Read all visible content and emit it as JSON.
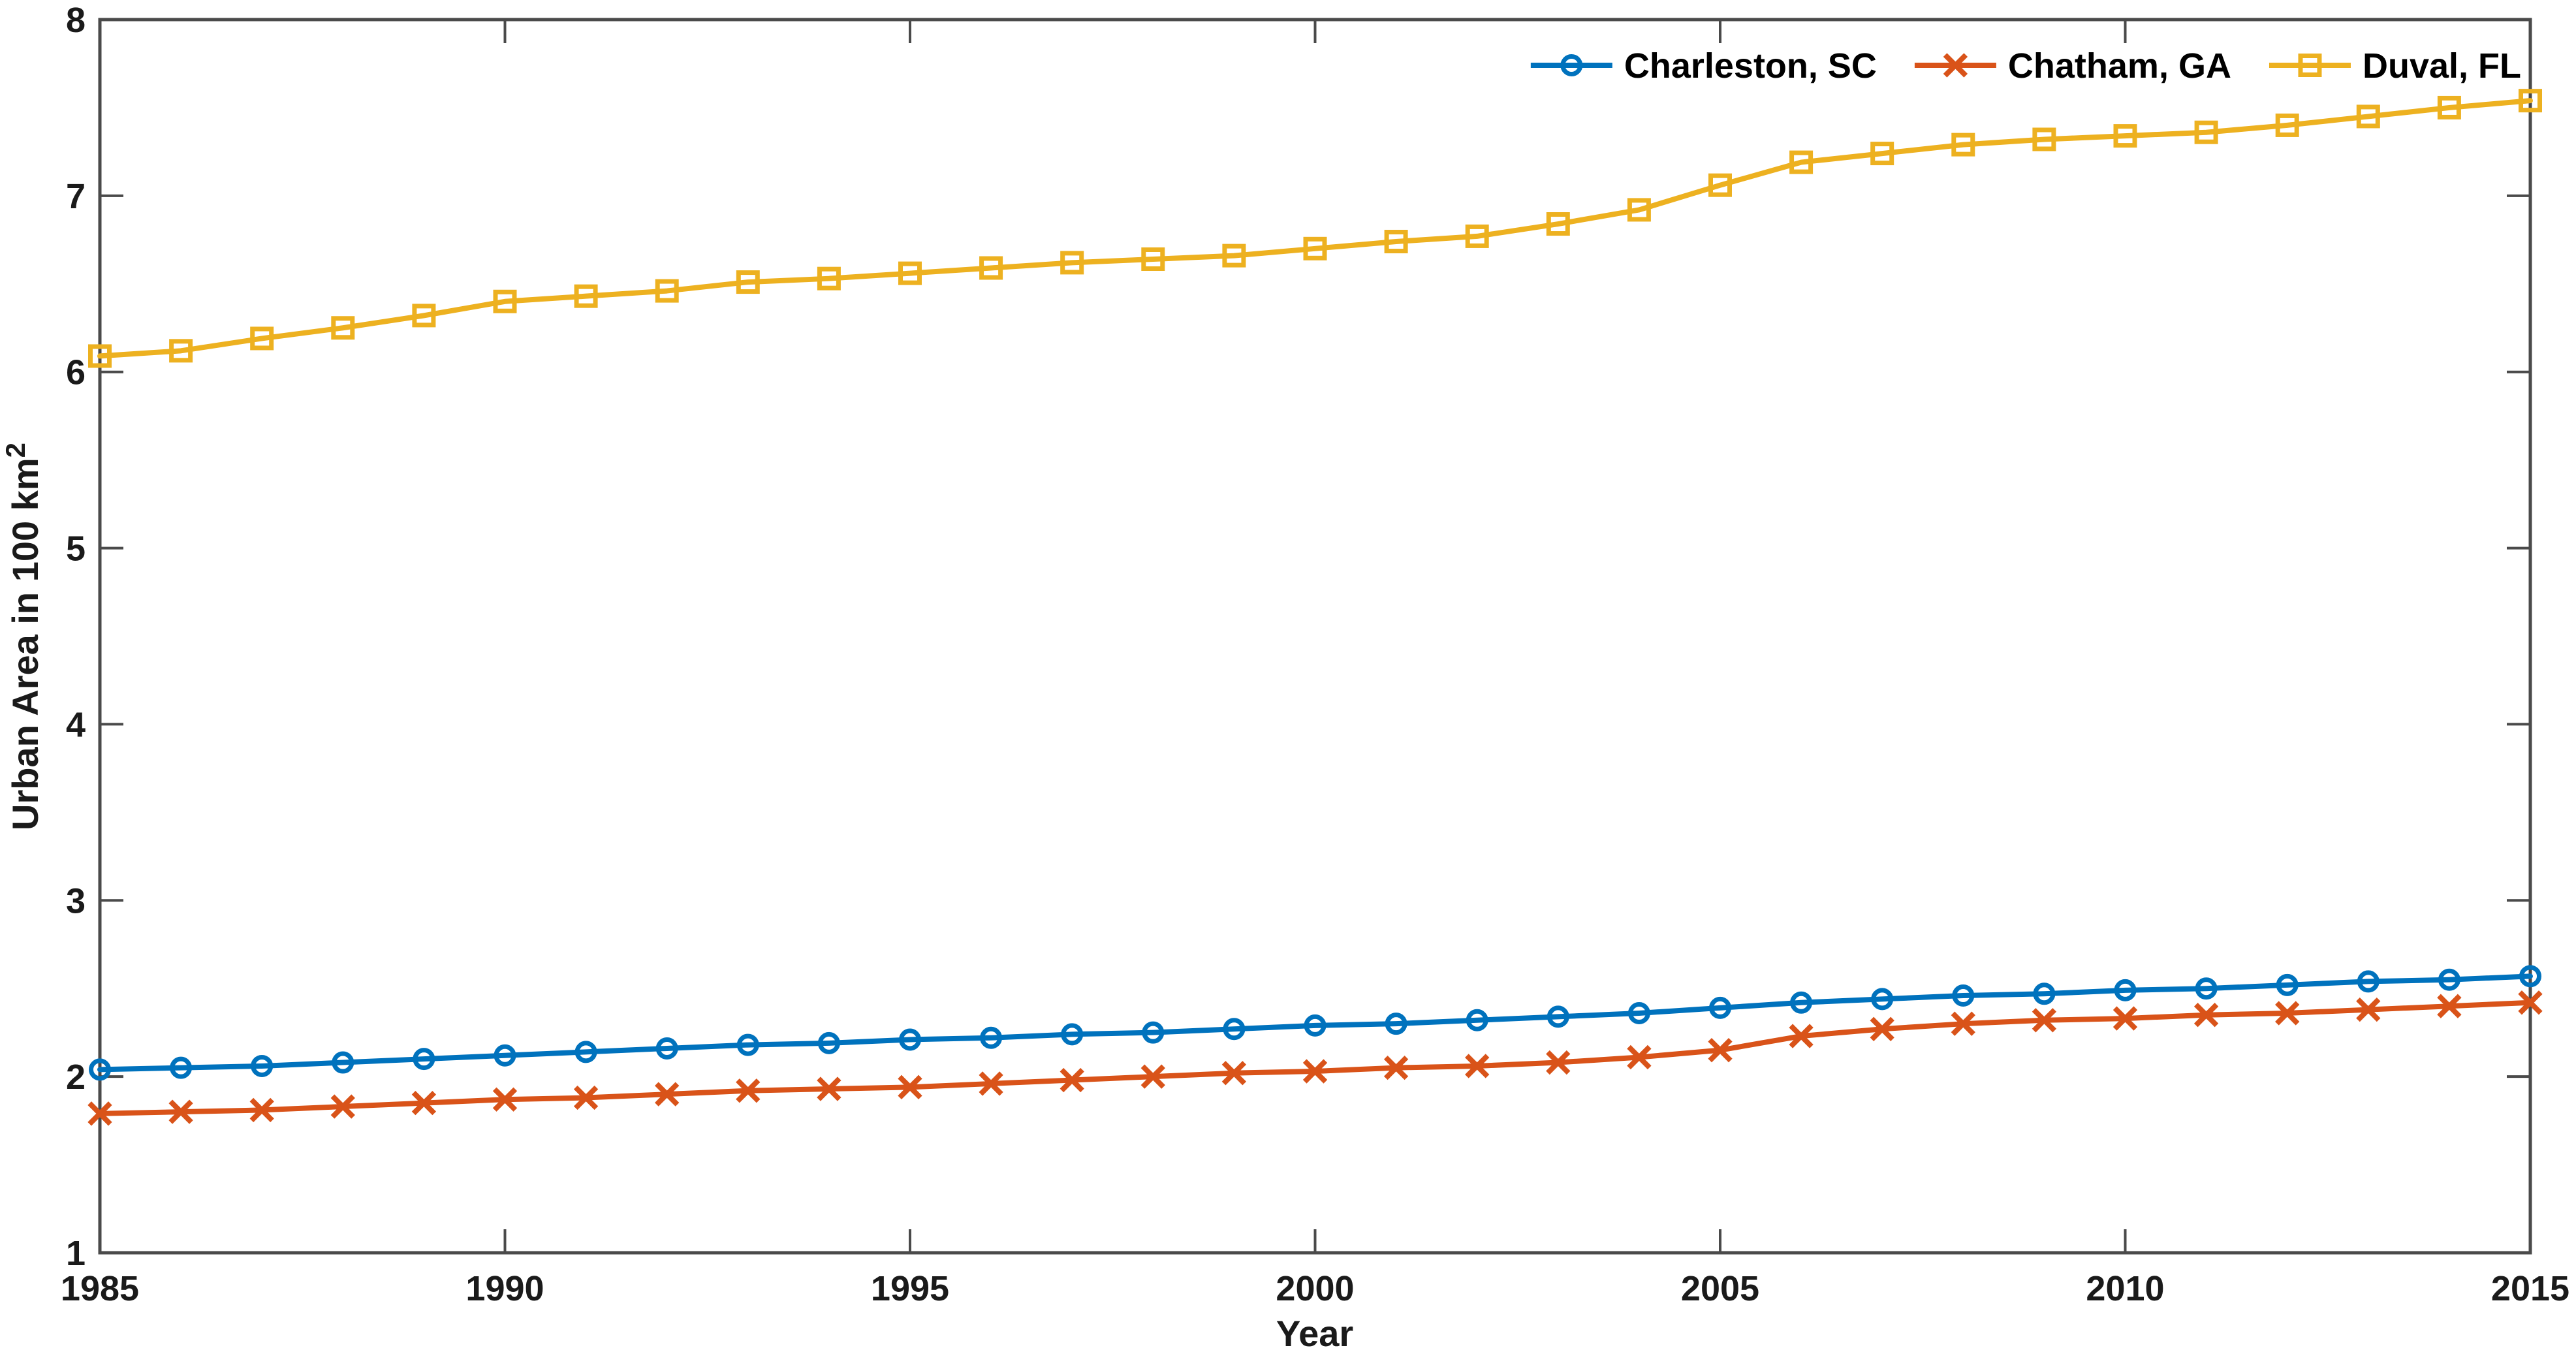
{
  "figure": {
    "background": "#ffffff",
    "axis_color": "#4a4a4a",
    "tick_color": "#4a4a4a",
    "text_color": "#1a1a1a"
  },
  "chart_data": {
    "type": "line",
    "title": "",
    "xlabel": "Year",
    "ylabel": {
      "text": "Urban Area in 100 km",
      "superscript": "2"
    },
    "xlim": [
      1985,
      2015
    ],
    "ylim": [
      1,
      8
    ],
    "xticks": [
      1985,
      1990,
      1995,
      2000,
      2005,
      2010,
      2015
    ],
    "yticks": [
      1,
      2,
      3,
      4,
      5,
      6,
      7,
      8
    ],
    "grid": false,
    "legend": {
      "position": "top-right",
      "orientation": "horizontal"
    },
    "x": [
      1985,
      1986,
      1987,
      1988,
      1989,
      1990,
      1991,
      1992,
      1993,
      1994,
      1995,
      1996,
      1997,
      1998,
      1999,
      2000,
      2001,
      2002,
      2003,
      2004,
      2005,
      2006,
      2007,
      2008,
      2009,
      2010,
      2011,
      2012,
      2013,
      2014,
      2015
    ],
    "series": [
      {
        "name": "Charleston, SC",
        "color": "#0072BD",
        "marker": "circle",
        "values": [
          2.04,
          2.05,
          2.06,
          2.08,
          2.1,
          2.12,
          2.14,
          2.16,
          2.18,
          2.19,
          2.21,
          2.22,
          2.24,
          2.25,
          2.27,
          2.29,
          2.3,
          2.32,
          2.34,
          2.36,
          2.39,
          2.42,
          2.44,
          2.46,
          2.47,
          2.49,
          2.5,
          2.52,
          2.54,
          2.55,
          2.57
        ]
      },
      {
        "name": "Chatham, GA",
        "color": "#D95319",
        "marker": "x",
        "values": [
          1.79,
          1.8,
          1.81,
          1.83,
          1.85,
          1.87,
          1.88,
          1.9,
          1.92,
          1.93,
          1.94,
          1.96,
          1.98,
          2.0,
          2.02,
          2.03,
          2.05,
          2.06,
          2.08,
          2.11,
          2.15,
          2.23,
          2.27,
          2.3,
          2.32,
          2.33,
          2.35,
          2.36,
          2.38,
          2.4,
          2.42
        ]
      },
      {
        "name": "Duval, FL",
        "color": "#EDB120",
        "marker": "square",
        "values": [
          6.09,
          6.12,
          6.19,
          6.25,
          6.32,
          6.4,
          6.43,
          6.46,
          6.51,
          6.53,
          6.56,
          6.59,
          6.62,
          6.64,
          6.66,
          6.7,
          6.74,
          6.77,
          6.84,
          6.92,
          7.06,
          7.19,
          7.24,
          7.29,
          7.32,
          7.34,
          7.36,
          7.4,
          7.45,
          7.5,
          7.54
        ]
      }
    ]
  }
}
